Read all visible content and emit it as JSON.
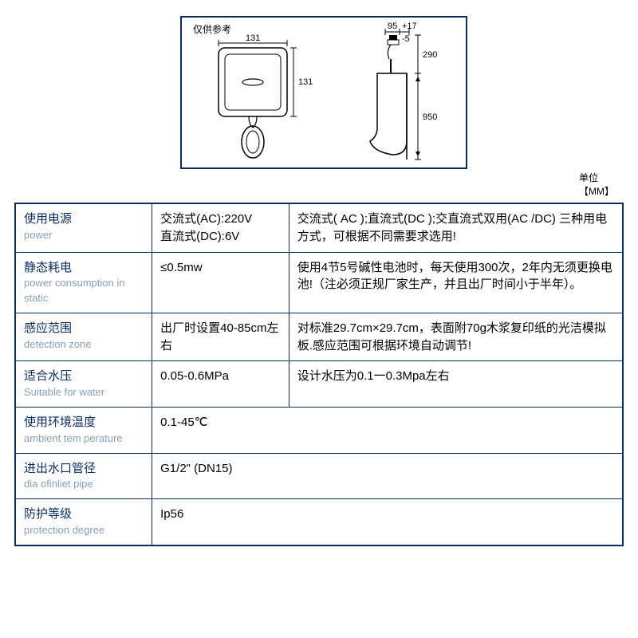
{
  "diagram": {
    "reference_label": "仅供参考",
    "unit_label": "单位【MM】",
    "front": {
      "width_label": "131",
      "height_label": "131",
      "panel_size": 131
    },
    "side": {
      "top_dim1": "95",
      "top_dim2": "+17",
      "top_dim3": "-5",
      "upper_height": "290",
      "lower_height": "950"
    },
    "colors": {
      "border": "#0a2d5e",
      "stroke": "#000000",
      "fill_light": "#f5f5f5"
    }
  },
  "table": {
    "label_color": "#0a2d5e",
    "sublabel_color": "#8a9db5",
    "border_color": "#0a2d5e",
    "rows": [
      {
        "label_zh": "使用电源",
        "label_en": "power",
        "value": "交流式(AC):220V\n直流式(DC):6V",
        "desc": "交流式( AC );直流式(DC );交直流式双用(AC /DC) 三种用电方式，可根据不同需要求选用!"
      },
      {
        "label_zh": "静态耗电",
        "label_en": "power consumption in static",
        "value": "≤0.5mw",
        "desc": "使用4节5号碱性电池时，每天使用300次，2年内无须更换电池!（注必须正规厂家生产，并且出厂时间小于半年）。"
      },
      {
        "label_zh": "感应范围",
        "label_en": "detection  zone",
        "value": "出厂时设置40-85cm左右",
        "desc": "对标准29.7cm×29.7cm，表面附70g木浆复印纸的光洁模拟板.感应范围可根据环境自动调节!"
      },
      {
        "label_zh": "适合水压",
        "label_en": "Suitable for water",
        "value": "0.05-0.6MPa",
        "desc": "设计水压为0.1一0.3Mpa左右"
      },
      {
        "label_zh": "使用环境温度",
        "label_en": "ambient tem perature",
        "value": "0.1-45℃",
        "desc": ""
      },
      {
        "label_zh": "进出水口管径",
        "label_en": "dia ofinliet pipe",
        "value": "G1/2\" (DN15)",
        "desc": ""
      },
      {
        "label_zh": "防护等级",
        "label_en": "protection degree",
        "value": "Ip56",
        "desc": ""
      }
    ]
  }
}
